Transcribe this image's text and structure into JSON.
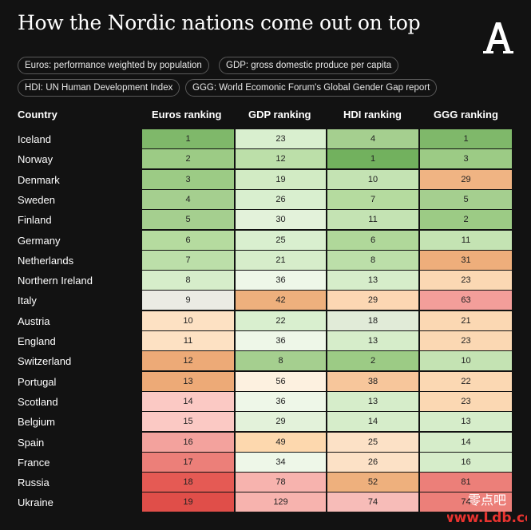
{
  "title": "How the Nordic nations come out on top",
  "legend_notes": [
    "Euros: performance weighted by population",
    "GDP: gross domestic produce per capita",
    "HDI: UN Human Development Index",
    "GGG: World Ecomonic Forum's Global Gender Gap report"
  ],
  "watermark": {
    "line1": "零点吧",
    "line2": "www.Ldb.cc"
  },
  "chart_data": {
    "type": "heatmap",
    "row_header": "Country",
    "columns": [
      "Euros ranking",
      "GDP ranking",
      "HDI ranking",
      "GGG ranking"
    ],
    "rows": [
      {
        "country": "Iceland",
        "values": [
          1,
          23,
          4,
          1
        ]
      },
      {
        "country": "Norway",
        "values": [
          2,
          12,
          1,
          3
        ]
      },
      {
        "country": "Denmark",
        "values": [
          3,
          19,
          10,
          29
        ]
      },
      {
        "country": "Sweden",
        "values": [
          4,
          26,
          7,
          5
        ]
      },
      {
        "country": "Finland",
        "values": [
          5,
          30,
          11,
          2
        ]
      },
      {
        "country": "Germany",
        "values": [
          6,
          25,
          6,
          11
        ]
      },
      {
        "country": "Netherlands",
        "values": [
          7,
          21,
          8,
          31
        ]
      },
      {
        "country": "Northern Ireland",
        "values": [
          8,
          36,
          13,
          23
        ]
      },
      {
        "country": "Italy",
        "values": [
          9,
          42,
          29,
          63
        ]
      },
      {
        "country": "Austria",
        "values": [
          10,
          22,
          18,
          21
        ]
      },
      {
        "country": "England",
        "values": [
          11,
          36,
          13,
          23
        ]
      },
      {
        "country": "Switzerland",
        "values": [
          12,
          8,
          2,
          10
        ]
      },
      {
        "country": "Portugal",
        "values": [
          13,
          56,
          38,
          22
        ]
      },
      {
        "country": "Scotland",
        "values": [
          14,
          36,
          13,
          23
        ]
      },
      {
        "country": "Belgium",
        "values": [
          15,
          29,
          14,
          13
        ]
      },
      {
        "country": "Spain",
        "values": [
          16,
          49,
          25,
          14
        ]
      },
      {
        "country": "France",
        "values": [
          17,
          34,
          26,
          16
        ]
      },
      {
        "country": "Russia",
        "values": [
          18,
          78,
          52,
          81
        ]
      },
      {
        "country": "Ukraine",
        "values": [
          19,
          129,
          74,
          74
        ]
      }
    ],
    "cell_colors": [
      [
        "#7fb86a",
        "#d9efcf",
        "#a5cf8f",
        "#7fb86a"
      ],
      [
        "#9ccb85",
        "#bcdfa9",
        "#72b15e",
        "#9ccb85"
      ],
      [
        "#9ccb85",
        "#d2ebc4",
        "#c4e3b3",
        "#f0b483"
      ],
      [
        "#a5cf8f",
        "#d9efcf",
        "#b5db9f",
        "#a5cf8f"
      ],
      [
        "#a5cf8f",
        "#e3f2da",
        "#c4e3b3",
        "#9ccb85"
      ],
      [
        "#b5db9f",
        "#d9efcf",
        "#b0d89a",
        "#c4e3b3"
      ],
      [
        "#bcdfa9",
        "#d6edca",
        "#bcdfa9",
        "#eeae7b"
      ],
      [
        "#d6edca",
        "#eef7e8",
        "#d6edca",
        "#fbd8b3"
      ],
      [
        "#ebebe4",
        "#eeb07d",
        "#fcd7b3",
        "#f39e9a"
      ],
      [
        "#fde1c3",
        "#d9efcf",
        "#e1ebd8",
        "#fbd8b3"
      ],
      [
        "#fde1c3",
        "#eef7e8",
        "#d6edca",
        "#fbd8b3"
      ],
      [
        "#edaa77",
        "#a5cf8f",
        "#9ccb85",
        "#c4e3b3"
      ],
      [
        "#edaa77",
        "#fdf1e0",
        "#f7c69b",
        "#fbd8b3"
      ],
      [
        "#fbc9c4",
        "#eef7e8",
        "#d6edca",
        "#fbd8b3"
      ],
      [
        "#fbc9c4",
        "#e3f2da",
        "#d6edca",
        "#d6edca"
      ],
      [
        "#f3a29d",
        "#fdd8ae",
        "#fce1c6",
        "#d6edca"
      ],
      [
        "#ec7f79",
        "#eef7e8",
        "#fce1c6",
        "#d6edca"
      ],
      [
        "#e55a54",
        "#f7b3ae",
        "#eeb07d",
        "#ec7f79"
      ],
      [
        "#e04e49",
        "#f7b3ae",
        "#f7bcb8",
        "#ec7f79"
      ]
    ]
  }
}
